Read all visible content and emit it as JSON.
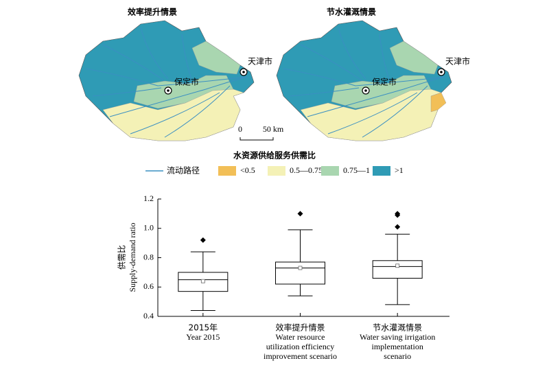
{
  "maps": [
    {
      "title": "效率提升情景",
      "cities": [
        "天津市",
        "保定市"
      ]
    },
    {
      "title": "节水灌溉情景",
      "cities": [
        "天津市",
        "保定市"
      ]
    }
  ],
  "scale_bar": {
    "labels": [
      "0",
      "50 km"
    ]
  },
  "legend": {
    "title": "水资源供给服务供需比",
    "flow": {
      "label": "流动路径",
      "color": "#3a8fc2"
    },
    "items": [
      {
        "label": "<0.5",
        "color": "#f2bf57"
      },
      {
        "label": "0.5—0.75",
        "color": "#f4f1b6"
      },
      {
        "label": "0.75—1",
        "color": "#a9d6b0"
      },
      {
        "label": ">1",
        "color": "#2f9bb5"
      }
    ]
  },
  "chart_data": {
    "type": "box",
    "y_label": [
      "供需比",
      "Supply-demand ratio"
    ],
    "categories": [
      [
        "2015年",
        "Year 2015"
      ],
      [
        "效率提升情景",
        "Water resource",
        "utilization efficiency",
        "improvement scenario"
      ],
      [
        "节水灌溉情景",
        "Water saving irrigation",
        "implementation",
        "scenario"
      ]
    ],
    "boxes": [
      {
        "whisker_low": 0.44,
        "q1": 0.57,
        "median": 0.65,
        "q3": 0.7,
        "whisker_high": 0.84,
        "mean": 0.64,
        "outliers": [
          0.92
        ]
      },
      {
        "whisker_low": 0.54,
        "q1": 0.62,
        "median": 0.73,
        "q3": 0.77,
        "whisker_high": 0.99,
        "mean": 0.73,
        "outliers": [
          1.1
        ]
      },
      {
        "whisker_low": 0.48,
        "q1": 0.66,
        "median": 0.74,
        "q3": 0.78,
        "whisker_high": 0.96,
        "mean": 0.745,
        "outliers": [
          1.1,
          1.09,
          1.01
        ]
      }
    ],
    "ylim": [
      0.4,
      1.2
    ],
    "yticks": [
      0.4,
      0.6,
      0.8,
      {
        "value": 1,
        "label": "1.0"
      },
      1.2
    ]
  }
}
